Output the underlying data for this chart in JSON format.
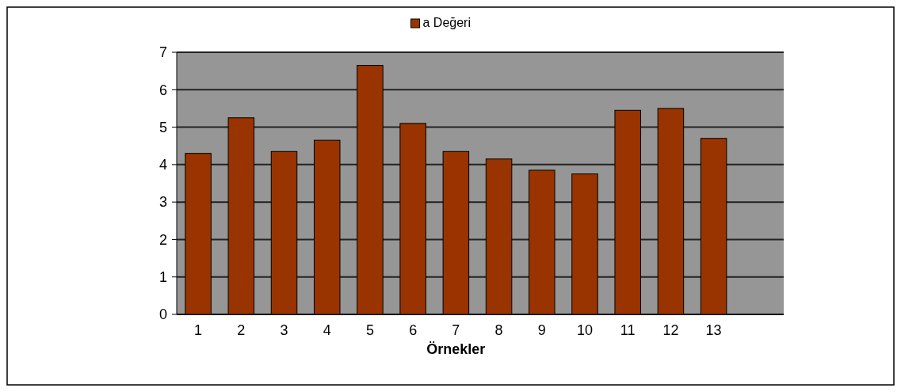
{
  "chart_data": {
    "type": "bar",
    "xlabel": "Örnekler",
    "categories": [
      "1",
      "2",
      "3",
      "4",
      "5",
      "6",
      "7",
      "8",
      "9",
      "10",
      "11",
      "12",
      "13"
    ],
    "series": [
      {
        "name": "a Değeri",
        "color": "#993300",
        "values": [
          4.3,
          5.25,
          4.35,
          4.65,
          6.65,
          5.1,
          4.35,
          4.15,
          3.85,
          3.75,
          5.45,
          5.5,
          4.7
        ]
      }
    ],
    "ylim": [
      0,
      7
    ],
    "yticks": [
      0,
      1,
      2,
      3,
      4,
      5,
      6,
      7
    ],
    "grid": "y",
    "legend": "top"
  }
}
